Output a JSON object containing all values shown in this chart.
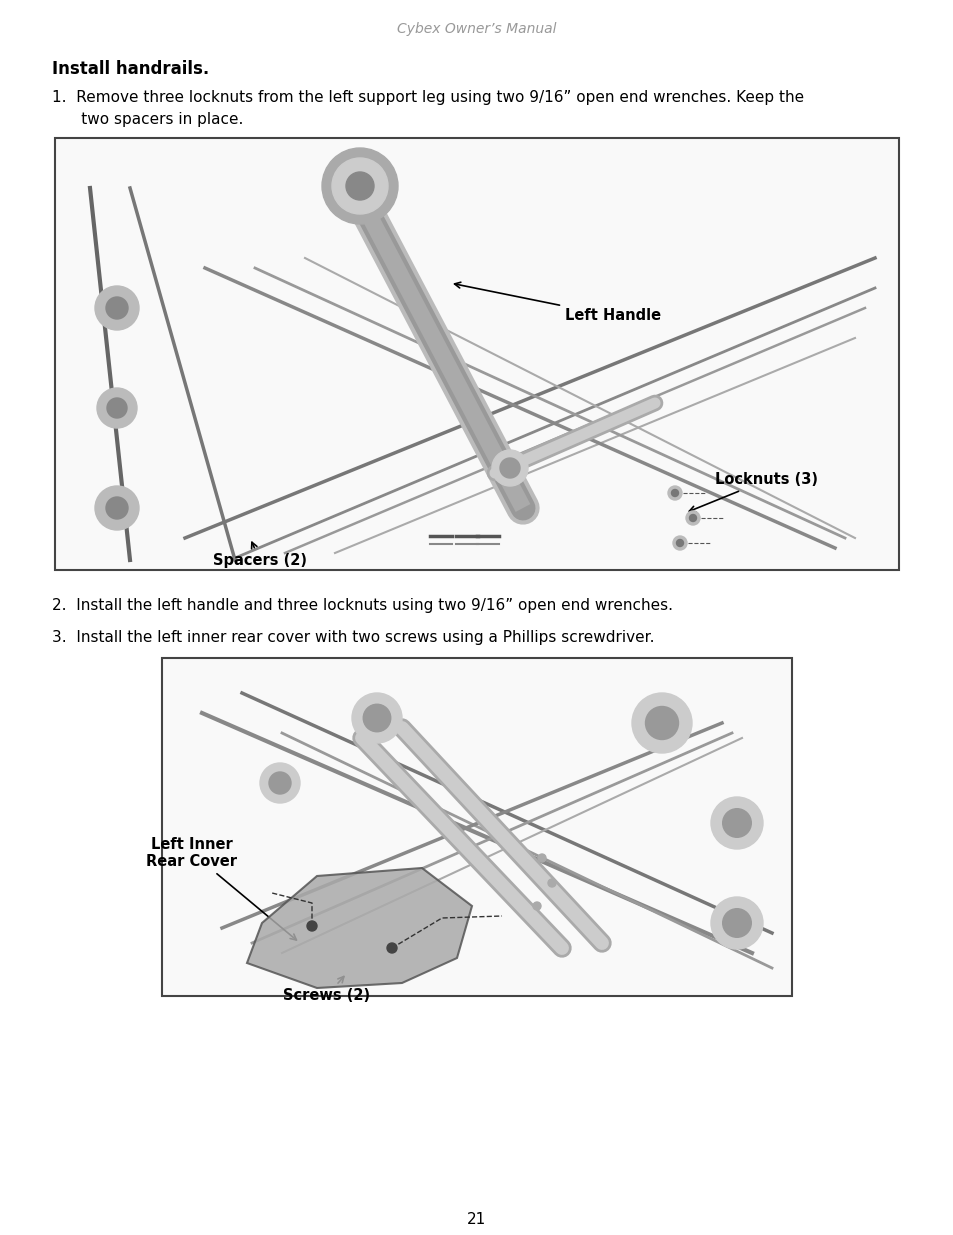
{
  "page_title": "Cybex Owner’s Manual",
  "section_title": "Install handrails.",
  "step1_line1": "1.  Remove three locknuts from the left support leg using two 9/16” open end wrenches. Keep the",
  "step1_line2": "      two spacers in place.",
  "step2_text": "2.  Install the left handle and three locknuts using two 9/16” open end wrenches.",
  "step3_text": "3.  Install the left inner rear cover with two screws using a Phillips screwdriver.",
  "page_number": "21",
  "bg_color": "#ffffff",
  "text_color": "#000000",
  "title_color": "#999999",
  "fig_width": 9.54,
  "fig_height": 12.35
}
